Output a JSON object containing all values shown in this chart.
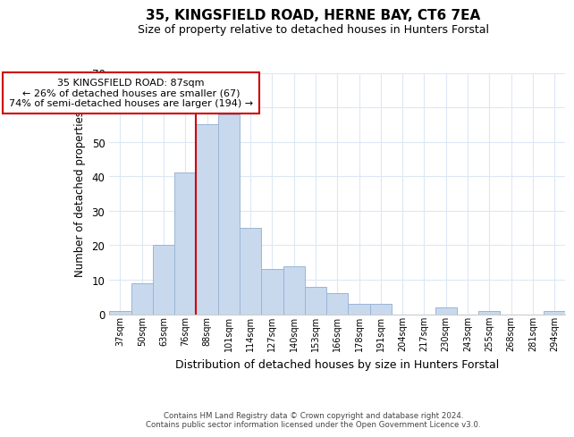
{
  "title": "35, KINGSFIELD ROAD, HERNE BAY, CT6 7EA",
  "subtitle": "Size of property relative to detached houses in Hunters Forstal",
  "xlabel": "Distribution of detached houses by size in Hunters Forstal",
  "ylabel": "Number of detached properties",
  "bar_labels": [
    "37sqm",
    "50sqm",
    "63sqm",
    "76sqm",
    "88sqm",
    "101sqm",
    "114sqm",
    "127sqm",
    "140sqm",
    "153sqm",
    "166sqm",
    "178sqm",
    "191sqm",
    "204sqm",
    "217sqm",
    "230sqm",
    "243sqm",
    "255sqm",
    "268sqm",
    "281sqm",
    "294sqm"
  ],
  "bar_values": [
    1,
    9,
    20,
    41,
    55,
    58,
    25,
    13,
    14,
    8,
    6,
    3,
    3,
    0,
    0,
    2,
    0,
    1,
    0,
    0,
    1
  ],
  "bar_color": "#c8d9ee",
  "bar_edge_color": "#9ab5d4",
  "highlight_line_color": "#cc0000",
  "ylim": [
    0,
    70
  ],
  "yticks": [
    0,
    10,
    20,
    30,
    40,
    50,
    60,
    70
  ],
  "annotation_title": "35 KINGSFIELD ROAD: 87sqm",
  "annotation_line1": "← 26% of detached houses are smaller (67)",
  "annotation_line2": "74% of semi-detached houses are larger (194) →",
  "annotation_box_color": "#ffffff",
  "annotation_box_edge_color": "#cc0000",
  "footer_line1": "Contains HM Land Registry data © Crown copyright and database right 2024.",
  "footer_line2": "Contains public sector information licensed under the Open Government Licence v3.0.",
  "background_color": "#ffffff",
  "grid_color": "#dce8f5"
}
